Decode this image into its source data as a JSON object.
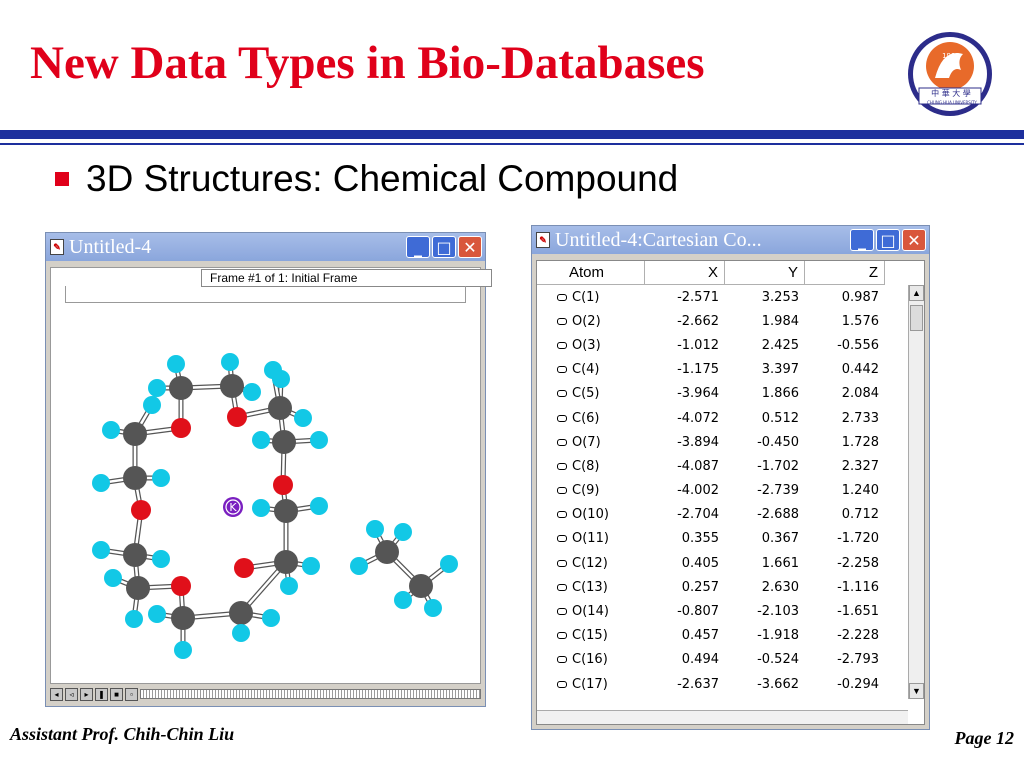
{
  "slide": {
    "title": "New Data Types in Bio-Databases",
    "bullet": "3D Structures: Chemical Compound",
    "footer_left": "Assistant Prof. Chih-Chin Liu",
    "footer_right": "Page 12"
  },
  "logo": {
    "year": "1990",
    "chinese": "中 華 大 學",
    "english": "CHUNG HUA UNIVERSITY"
  },
  "molecule_window": {
    "title": "Untitled-4",
    "frame_label": "Frame #1 of 1: Initial Frame",
    "ion_label": "K"
  },
  "coords_window": {
    "title": "Untitled-4:Cartesian Co...",
    "columns": [
      "Atom",
      "X",
      "Y",
      "Z"
    ],
    "rows": [
      {
        "atom": "C(1)",
        "x": "-2.571",
        "y": "3.253",
        "z": "0.987"
      },
      {
        "atom": "O(2)",
        "x": "-2.662",
        "y": "1.984",
        "z": "1.576"
      },
      {
        "atom": "O(3)",
        "x": "-1.012",
        "y": "2.425",
        "z": "-0.556"
      },
      {
        "atom": "C(4)",
        "x": "-1.175",
        "y": "3.397",
        "z": "0.442"
      },
      {
        "atom": "C(5)",
        "x": "-3.964",
        "y": "1.866",
        "z": "2.084"
      },
      {
        "atom": "C(6)",
        "x": "-4.072",
        "y": "0.512",
        "z": "2.733"
      },
      {
        "atom": "O(7)",
        "x": "-3.894",
        "y": "-0.450",
        "z": "1.728"
      },
      {
        "atom": "C(8)",
        "x": "-4.087",
        "y": "-1.702",
        "z": "2.327"
      },
      {
        "atom": "C(9)",
        "x": "-4.002",
        "y": "-2.739",
        "z": "1.240"
      },
      {
        "atom": "O(10)",
        "x": "-2.704",
        "y": "-2.688",
        "z": "0.712"
      },
      {
        "atom": "O(11)",
        "x": "0.355",
        "y": "0.367",
        "z": "-1.720"
      },
      {
        "atom": "C(12)",
        "x": "0.405",
        "y": "1.661",
        "z": "-2.258"
      },
      {
        "atom": "C(13)",
        "x": "0.257",
        "y": "2.630",
        "z": "-1.116"
      },
      {
        "atom": "O(14)",
        "x": "-0.807",
        "y": "-2.103",
        "z": "-1.651"
      },
      {
        "atom": "C(15)",
        "x": "0.457",
        "y": "-1.918",
        "z": "-2.228"
      },
      {
        "atom": "C(16)",
        "x": "0.494",
        "y": "-0.524",
        "z": "-2.793"
      },
      {
        "atom": "C(17)",
        "x": "-2.637",
        "y": "-3.662",
        "z": "-0.294"
      }
    ]
  },
  "colors": {
    "title_red": "#e0001a",
    "rule_blue": "#1d2f9d",
    "carbon": "#555555",
    "oxygen": "#e0101a",
    "hydrogen": "#12c8e6",
    "potassium": "#7a1fc0"
  }
}
